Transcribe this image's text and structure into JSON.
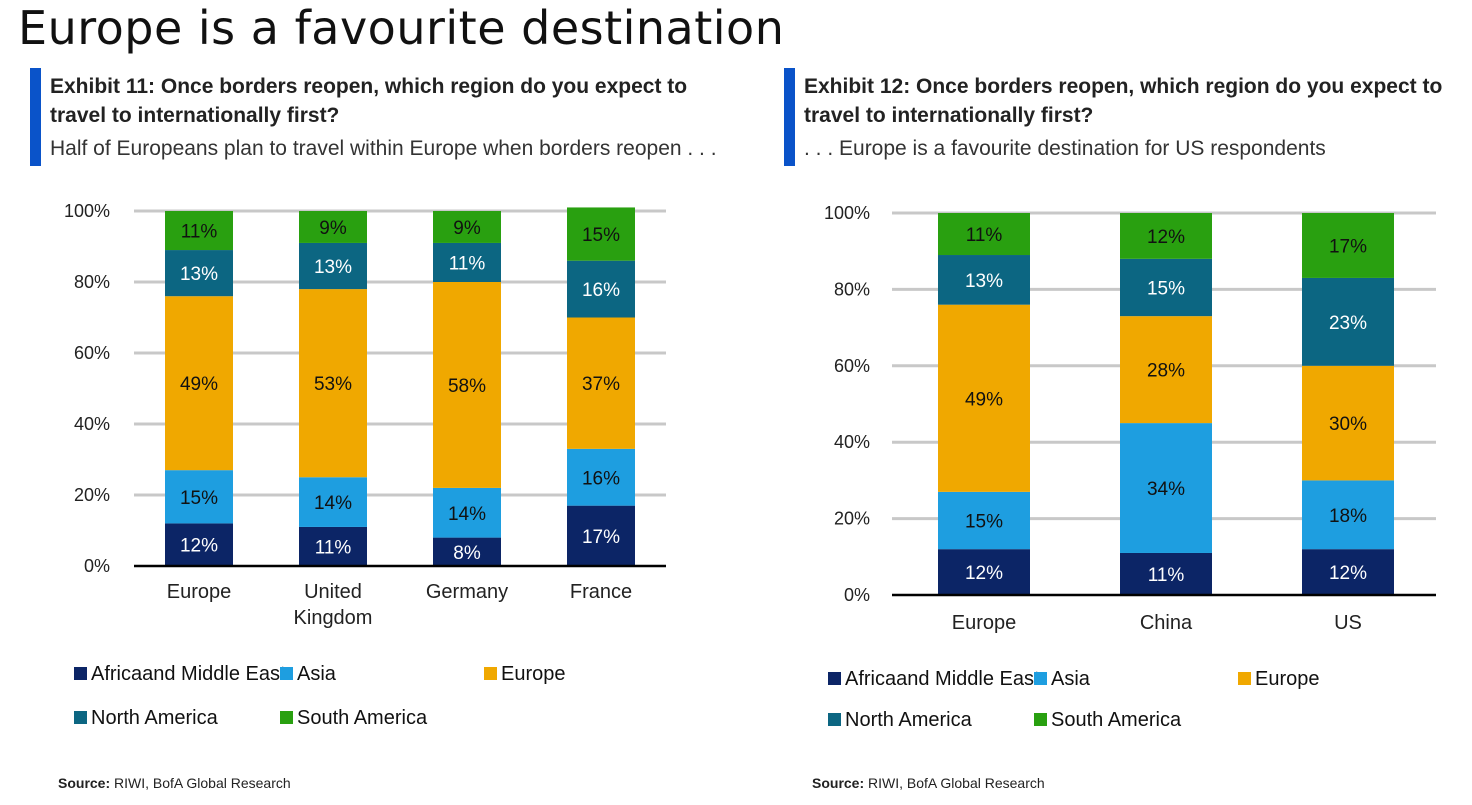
{
  "page_title": "Europe is a favourite destination",
  "exhibits": [
    {
      "title": "Exhibit 11: Once borders reopen, which region do you expect to travel to internationally first?",
      "subtitle": "Half of Europeans plan to travel within Europe when borders reopen . . .",
      "source_label": "Source:",
      "source_text": " RIWI, BofA Global Research"
    },
    {
      "title": "Exhibit 12: Once borders reopen, which region do you expect to travel to internationally first?",
      "subtitle": ". . . Europe is a favourite destination for US respondents",
      "source_label": "Source:",
      "source_text": " RIWI, BofA Global Research"
    }
  ],
  "colors": {
    "Africaand Middle East": "#0c2566",
    "Asia": "#1e9ee0",
    "Europe": "#f0a800",
    "North America": "#0c6682",
    "South America": "#29a010",
    "accent": "#0a53c9",
    "gridline": "#c8c8c8",
    "axis": "#000000"
  },
  "chart_data": [
    {
      "type": "bar",
      "stacked": true,
      "categories": [
        [
          "Europe"
        ],
        [
          "United",
          "Kingdom"
        ],
        [
          "Germany"
        ],
        [
          "France"
        ]
      ],
      "series": [
        {
          "name": "Africaand Middle East",
          "values": [
            12,
            11,
            8,
            17
          ]
        },
        {
          "name": "Asia",
          "values": [
            15,
            14,
            14,
            16
          ]
        },
        {
          "name": "Europe",
          "values": [
            49,
            53,
            58,
            37
          ]
        },
        {
          "name": "North America",
          "values": [
            13,
            13,
            11,
            16
          ]
        },
        {
          "name": "South America",
          "values": [
            11,
            9,
            9,
            15
          ]
        }
      ],
      "ylim": [
        0,
        100
      ],
      "yticks": [
        0,
        20,
        40,
        60,
        80,
        100
      ],
      "ytick_labels": [
        "0%",
        "20%",
        "40%",
        "60%",
        "80%",
        "100%"
      ],
      "grid": true,
      "legend_placement": "bottom",
      "legend_rows": [
        [
          "Africaand Middle East",
          "Asia",
          "Europe"
        ],
        [
          "North America",
          "South America"
        ]
      ]
    },
    {
      "type": "bar",
      "stacked": true,
      "categories": [
        [
          "Europe"
        ],
        [
          "China"
        ],
        [
          "US"
        ]
      ],
      "series": [
        {
          "name": "Africaand Middle East",
          "values": [
            12,
            11,
            12
          ]
        },
        {
          "name": "Asia",
          "values": [
            15,
            34,
            18
          ]
        },
        {
          "name": "Europe",
          "values": [
            49,
            28,
            30
          ]
        },
        {
          "name": "North America",
          "values": [
            13,
            15,
            23
          ]
        },
        {
          "name": "South America",
          "values": [
            11,
            12,
            17
          ]
        }
      ],
      "ylim": [
        0,
        100
      ],
      "yticks": [
        0,
        20,
        40,
        60,
        80,
        100
      ],
      "ytick_labels": [
        "0%",
        "20%",
        "40%",
        "60%",
        "80%",
        "100%"
      ],
      "grid": true,
      "legend_placement": "bottom",
      "legend_rows": [
        [
          "Africaand Middle East",
          "Asia",
          "Europe"
        ],
        [
          "North America",
          "South America"
        ]
      ]
    }
  ]
}
